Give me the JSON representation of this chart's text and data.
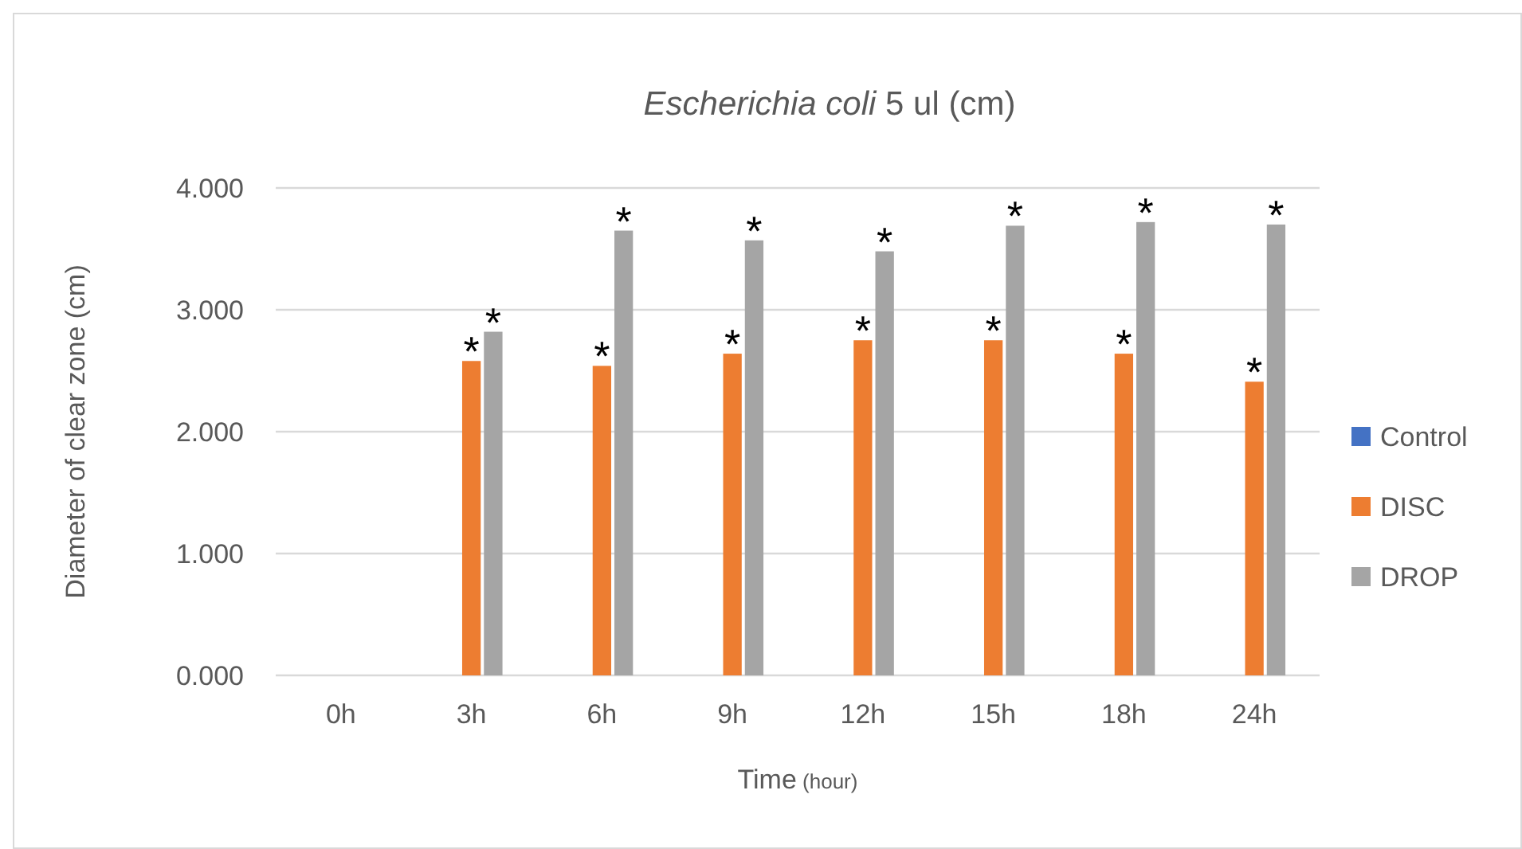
{
  "chart_data": {
    "type": "bar",
    "title": "Escherichia coli 5 ul (cm)",
    "xlabel": "Time (hour)",
    "ylabel": "Diameter of clear zone (cm)",
    "categories": [
      "0h",
      "3h",
      "6h",
      "9h",
      "12h",
      "15h",
      "18h",
      "24h"
    ],
    "series": [
      {
        "name": "Control",
        "color": "#4472c4",
        "values": [
          0,
          0,
          0,
          0,
          0,
          0,
          0,
          0
        ]
      },
      {
        "name": "DISC",
        "color": "#ed7d31",
        "values": [
          null,
          2.58,
          2.54,
          2.64,
          2.75,
          2.75,
          2.64,
          2.41
        ]
      },
      {
        "name": "DROP",
        "color": "#a5a5a5",
        "values": [
          null,
          2.82,
          3.65,
          3.57,
          3.48,
          3.69,
          3.72,
          3.7
        ]
      }
    ],
    "ylim": [
      0,
      4
    ],
    "yticks": [
      {
        "value": 0,
        "label": "0.000"
      },
      {
        "value": 1,
        "label": "1.000"
      },
      {
        "value": 2,
        "label": "2.000"
      },
      {
        "value": 3,
        "label": "3.000"
      },
      {
        "value": 4,
        "label": "4.000"
      }
    ],
    "grid": "y",
    "legend": "right",
    "annotations": [
      "*",
      "*",
      "*",
      "*",
      "*",
      "*",
      "*",
      "*",
      "*",
      "*",
      "*",
      "*",
      "*",
      "*"
    ]
  }
}
